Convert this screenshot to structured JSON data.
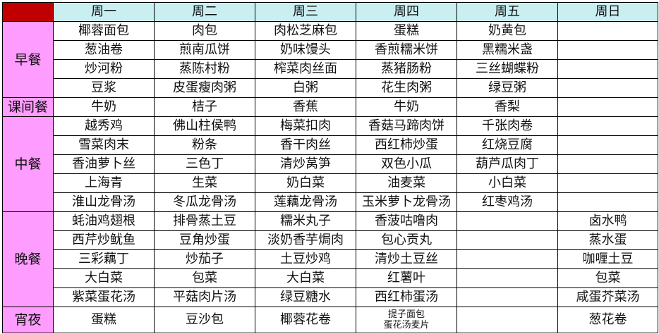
{
  "colors": {
    "corner": "#c00000",
    "header": "#c9eff1",
    "category": "#ff9cff"
  },
  "header": [
    "",
    "周一",
    "周二",
    "周三",
    "周四",
    "周五",
    "周日"
  ],
  "meals": [
    {
      "name": "早餐",
      "rows": [
        [
          "椰蓉面包",
          "肉包",
          "肉松芝麻包",
          "蛋糕",
          "奶黄包",
          ""
        ],
        [
          "葱油卷",
          "煎南瓜饼",
          "奶味馒头",
          "香煎糯米饼",
          "黑糯米盏",
          ""
        ],
        [
          "炒河粉",
          "蒸陈村粉",
          "榨菜肉丝面",
          "蒸猪肠粉",
          "三丝蝴蝶粉",
          ""
        ],
        [
          "豆浆",
          "皮蛋瘦肉粥",
          "白粥",
          "花生肉粥",
          "绿豆粥",
          ""
        ]
      ]
    },
    {
      "name": "课间餐",
      "rows": [
        [
          "牛奶",
          "桔子",
          "香蕉",
          "牛奶",
          "香梨",
          ""
        ]
      ]
    },
    {
      "name": "中餐",
      "rows": [
        [
          "越秀鸡",
          "佛山柱侯鸭",
          "梅菜扣肉",
          "香菇马蹄肉饼",
          "千张肉卷",
          ""
        ],
        [
          "雪菜肉末",
          "粉条",
          "香干肉丝",
          "西红柿炒蛋",
          "红烧豆腐",
          ""
        ],
        [
          "香油萝卜丝",
          "三色丁",
          "清炒莴笋",
          "双色小瓜",
          "葫芦瓜肉丁",
          ""
        ],
        [
          "上海青",
          "生菜",
          "奶白菜",
          "油麦菜",
          "小白菜",
          ""
        ],
        [
          "淮山龙骨汤",
          "冬瓜龙骨汤",
          "莲藕龙骨汤",
          "玉米萝卜龙骨汤",
          "红枣鸡汤",
          ""
        ]
      ]
    },
    {
      "name": "晚餐",
      "rows": [
        [
          "蚝油鸡翅根",
          "排骨蒸土豆",
          "糯米丸子",
          "香菠咕噜肉",
          "",
          "卤水鸭"
        ],
        [
          "西芹炒鱿鱼",
          "豆角炒蛋",
          "淡奶香芋焗肉",
          "包心贡丸",
          "",
          "蒸水蛋"
        ],
        [
          "三彩藕丁",
          "炒茄子",
          "土豆炒鸡",
          "清炒土豆丝",
          "",
          "咖喱土豆"
        ],
        [
          "大白菜",
          "包菜",
          "大白菜",
          "红薯叶",
          "",
          "包菜"
        ],
        [
          "紫菜蛋花汤",
          "平菇肉片汤",
          "绿豆糖水",
          "西红柿蛋汤",
          "",
          "咸蛋芥菜汤"
        ]
      ]
    },
    {
      "name": "宵夜",
      "rows": [
        [
          "蛋糕",
          "豆沙包",
          "椰蓉花卷",
          "提子面包\n蛋花汤麦片",
          "",
          "葱花卷"
        ]
      ]
    }
  ]
}
